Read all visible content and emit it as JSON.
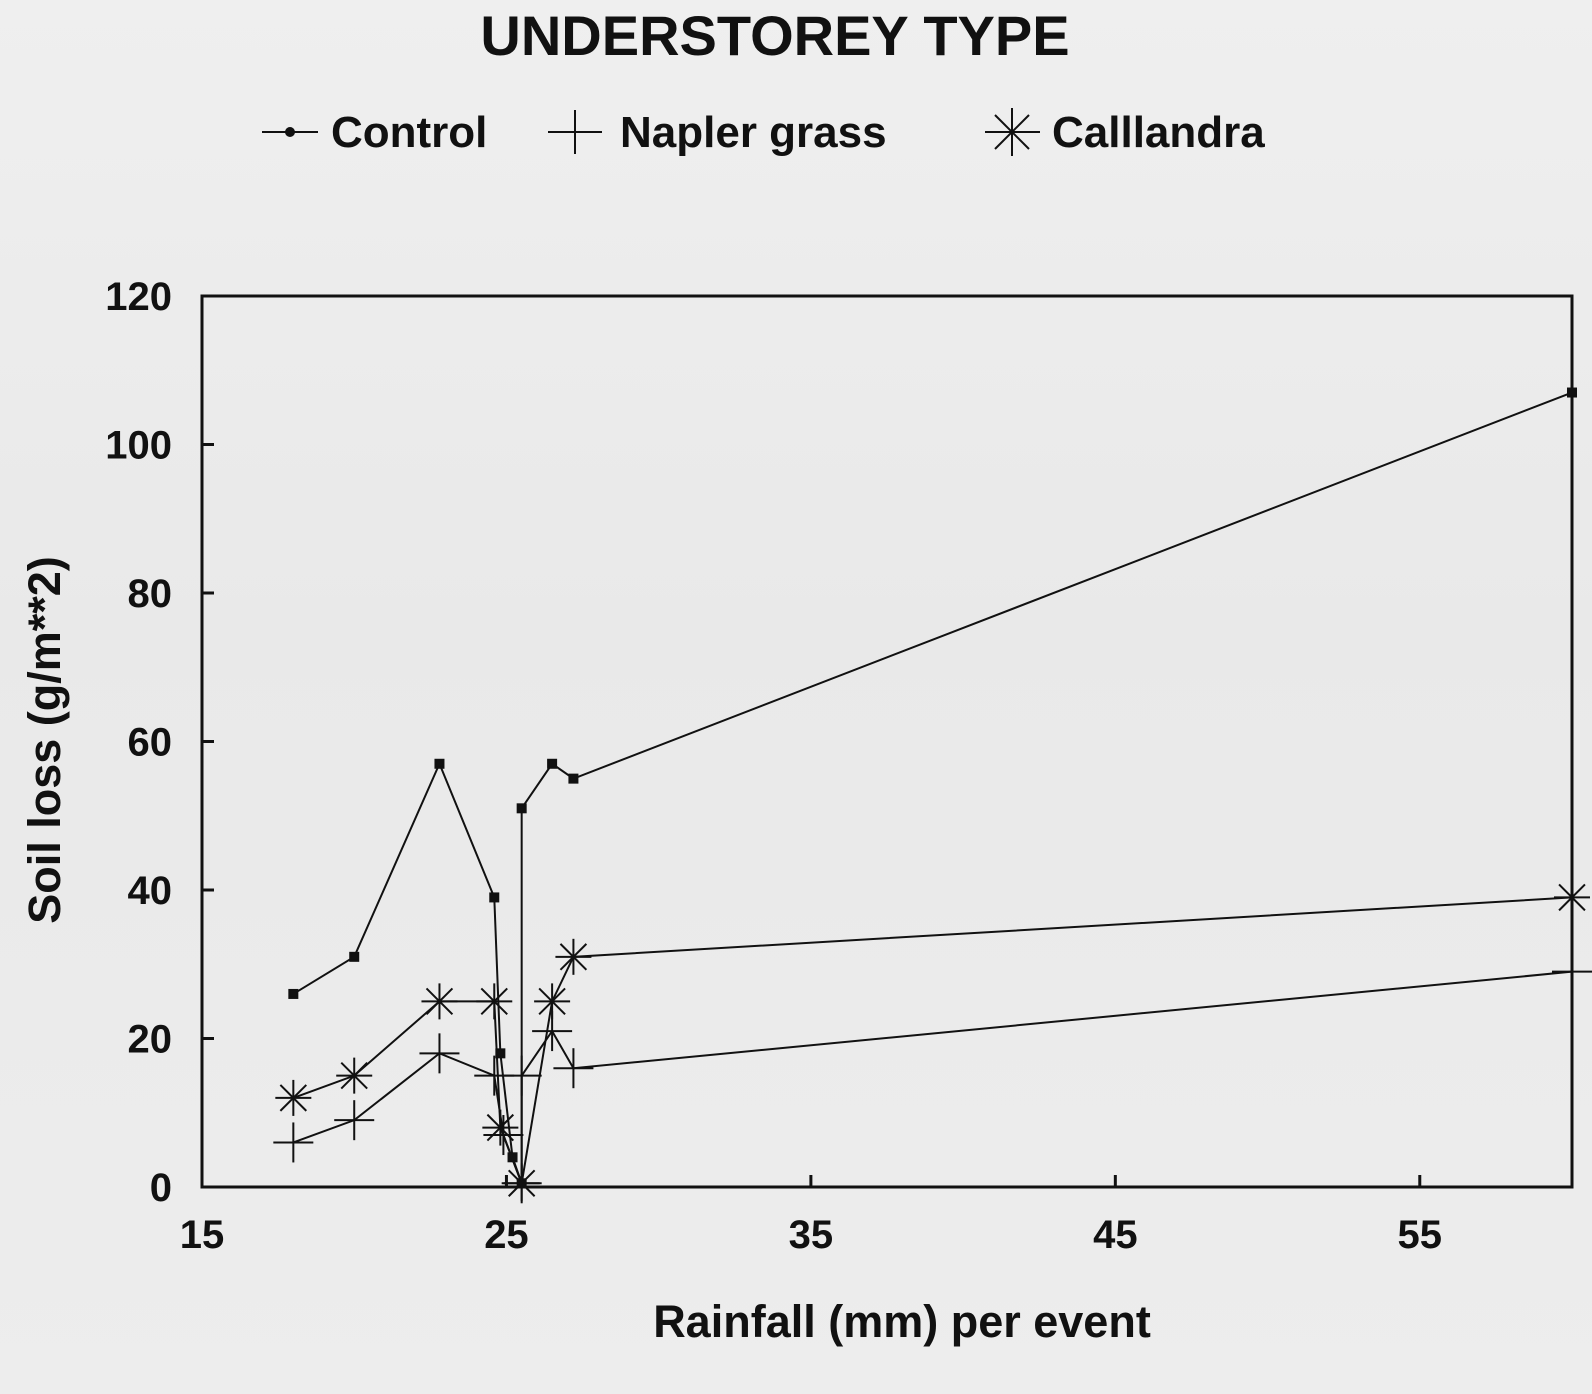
{
  "chart_data": {
    "type": "line",
    "title": "UNDERSTOREY TYPE",
    "xlabel": "Rainfall (mm) per event",
    "ylabel": "Soil loss (g/m**2)",
    "xlim": [
      15,
      60
    ],
    "ylim": [
      0,
      120
    ],
    "xticks": [
      15,
      25,
      35,
      45,
      55
    ],
    "yticks": [
      0,
      20,
      40,
      60,
      80,
      100,
      120
    ],
    "grid": false,
    "legend_position": "top",
    "series": [
      {
        "name": "Control",
        "marker": "dot",
        "points": [
          [
            18,
            26
          ],
          [
            20,
            31
          ],
          [
            22.8,
            57
          ],
          [
            24.6,
            39
          ],
          [
            24.8,
            18
          ],
          [
            25.2,
            4
          ],
          [
            25.5,
            0.5
          ],
          [
            25.5,
            51
          ],
          [
            26.5,
            57
          ],
          [
            27.2,
            55
          ],
          [
            60,
            107
          ]
        ]
      },
      {
        "name": "Napler grass",
        "marker": "plus",
        "points": [
          [
            18,
            6
          ],
          [
            20,
            9
          ],
          [
            22.8,
            18
          ],
          [
            24.6,
            15
          ],
          [
            24.9,
            7
          ],
          [
            25.5,
            0.5
          ],
          [
            25.5,
            15
          ],
          [
            26.5,
            21
          ],
          [
            27.2,
            16
          ],
          [
            60,
            29
          ]
        ]
      },
      {
        "name": "Calllandra",
        "marker": "asterisk",
        "points": [
          [
            18,
            12
          ],
          [
            20,
            15
          ],
          [
            22.8,
            25
          ],
          [
            24.6,
            25
          ],
          [
            24.8,
            8
          ],
          [
            25.5,
            0.5
          ],
          [
            26.5,
            25
          ],
          [
            27.2,
            31
          ],
          [
            60,
            39
          ]
        ]
      }
    ]
  }
}
